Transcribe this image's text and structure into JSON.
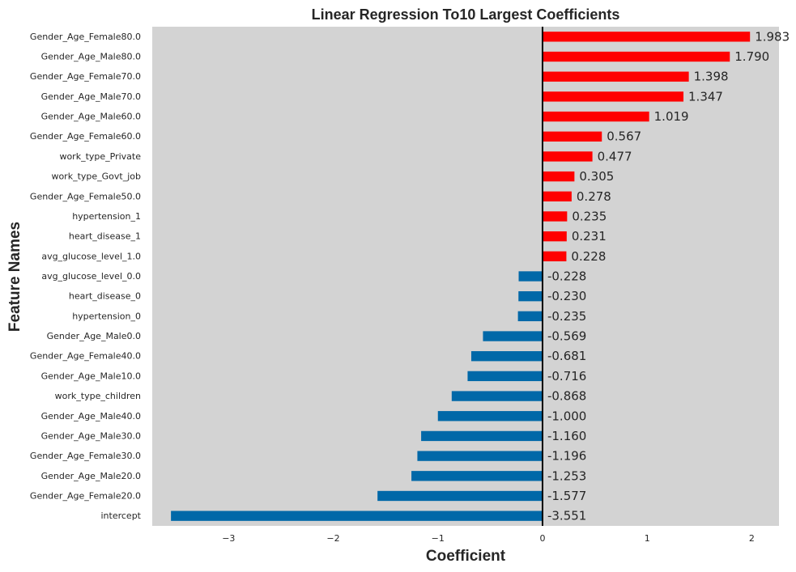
{
  "chart_data": {
    "type": "bar",
    "orientation": "horizontal",
    "title": "Linear Regression To10 Largest Coefficients",
    "xlabel": "Coefficient",
    "ylabel": "Feature Names",
    "xlim": [
      -3.73,
      2.26
    ],
    "xticks": [
      {
        "value": -3,
        "label": "−3"
      },
      {
        "value": -2,
        "label": "−2"
      },
      {
        "value": -1,
        "label": "−1"
      },
      {
        "value": 0,
        "label": "0"
      },
      {
        "value": 1,
        "label": "1"
      },
      {
        "value": 2,
        "label": "2"
      }
    ],
    "categories": [
      "Gender_Age_Female80.0",
      "Gender_Age_Male80.0",
      "Gender_Age_Female70.0",
      "Gender_Age_Male70.0",
      "Gender_Age_Male60.0",
      "Gender_Age_Female60.0",
      "work_type_Private",
      "work_type_Govt_job",
      "Gender_Age_Female50.0",
      "hypertension_1",
      "heart_disease_1",
      "avg_glucose_level_1.0",
      "avg_glucose_level_0.0",
      "heart_disease_0",
      "hypertension_0",
      "Gender_Age_Male0.0",
      "Gender_Age_Female40.0",
      "Gender_Age_Male10.0",
      "work_type_children",
      "Gender_Age_Male40.0",
      "Gender_Age_Male30.0",
      "Gender_Age_Female30.0",
      "Gender_Age_Male20.0",
      "Gender_Age_Female20.0",
      "intercept"
    ],
    "values": [
      1.983,
      1.79,
      1.398,
      1.347,
      1.019,
      0.567,
      0.477,
      0.305,
      0.278,
      0.235,
      0.231,
      0.228,
      -0.228,
      -0.23,
      -0.235,
      -0.569,
      -0.681,
      -0.716,
      -0.868,
      -1.0,
      -1.16,
      -1.196,
      -1.253,
      -1.577,
      -3.551
    ],
    "value_labels": [
      "1.983",
      "1.790",
      "1.398",
      "1.347",
      "1.019",
      "0.567",
      "0.477",
      "0.305",
      "0.278",
      "0.235",
      "0.231",
      "0.228",
      "-0.228",
      "-0.230",
      "-0.235",
      "-0.569",
      "-0.681",
      "-0.716",
      "-0.868",
      "-1.000",
      "-1.160",
      "-1.196",
      "-1.253",
      "-1.577",
      "-3.551"
    ],
    "colors": {
      "positive": "#ff0000",
      "negative": "#0068a8",
      "plot_background": "#d3d3d3",
      "zero_line": "#000000",
      "text": "#262626"
    },
    "grid": false,
    "legend": false
  }
}
